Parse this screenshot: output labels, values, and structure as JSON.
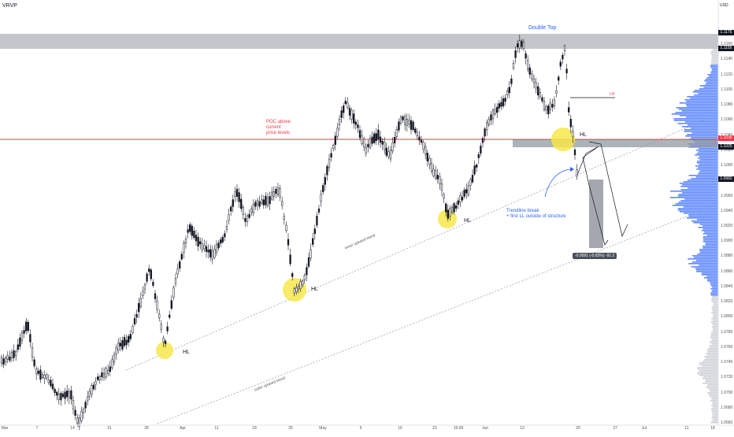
{
  "header": {
    "indicator": "VRVP",
    "currency": "USD"
  },
  "price_axis": {
    "labels": [
      "1.1160",
      "1.1140",
      "1.1120",
      "1.1100",
      "1.1080",
      "1.1060",
      "1.1040",
      "1.1020",
      "1.1000",
      "1.0980",
      "1.0960",
      "1.0940",
      "1.0920",
      "1.0900",
      "1.0880",
      "1.0860",
      "1.0840",
      "1.0820",
      "1.0800",
      "1.0780",
      "1.0760",
      "1.0740",
      "1.0720",
      "1.0700",
      "1.0680",
      "1.0660"
    ],
    "badges": [
      {
        "text": "1.1175",
        "color": "#131722"
      },
      {
        "text": "1.1155",
        "color": "#131722"
      },
      {
        "text": "1.1036",
        "color": "#f23645"
      },
      {
        "text": "1.1025",
        "color": "#131722"
      },
      {
        "text": "1.0982",
        "color": "#131722"
      }
    ]
  },
  "time_axis": {
    "labels": [
      "Mar",
      "7",
      "14",
      "21",
      "28",
      "Apr",
      "11",
      "18",
      "25",
      "May",
      "9",
      "16",
      "23",
      "15:00",
      "Jun",
      "13",
      "20",
      "27",
      "Jul",
      "11",
      "18"
    ]
  },
  "annotations": {
    "double_top": "Double Top",
    "poc_note": [
      "POC above",
      "current",
      "price levels"
    ],
    "lh": "LH",
    "hl_labels": [
      "HL",
      "HL",
      "HL",
      "HL"
    ],
    "trendline_break": [
      "Trendline break",
      "+ first LL outside of structure"
    ],
    "measure": "-0.0091 (-0.83%) -91.2",
    "inner_trend": "inner upward trend",
    "outer_trend": "outer upward trend"
  },
  "colors": {
    "up": "#ffffff",
    "down": "#131722",
    "poc_line": "#f23645",
    "highlight": "#f7e84a",
    "zone": "#9598a1",
    "profile_blue": "#2962ff",
    "profile_grey": "#b2b5be",
    "note_blue": "#2962ff",
    "measure_bg": "#4a4e59"
  },
  "chart_data": {
    "type": "candlestick",
    "symbol_note": "Price chart with volume profile (VRVP), range approx 1.0650 to 1.1180",
    "ylim": [
      1.065,
      1.118
    ],
    "key_levels": {
      "double_top_zone": [
        1.1155,
        1.1175
      ],
      "poc": 1.1036,
      "support_zone": [
        1.1025,
        1.1036
      ],
      "last_price": 1.0982
    },
    "swing_lows_hl": [
      1.0768,
      1.0832,
      1.0928,
      1.1036
    ],
    "measure": {
      "change": -0.0091,
      "percent": -0.83,
      "pips": -91.2
    }
  }
}
